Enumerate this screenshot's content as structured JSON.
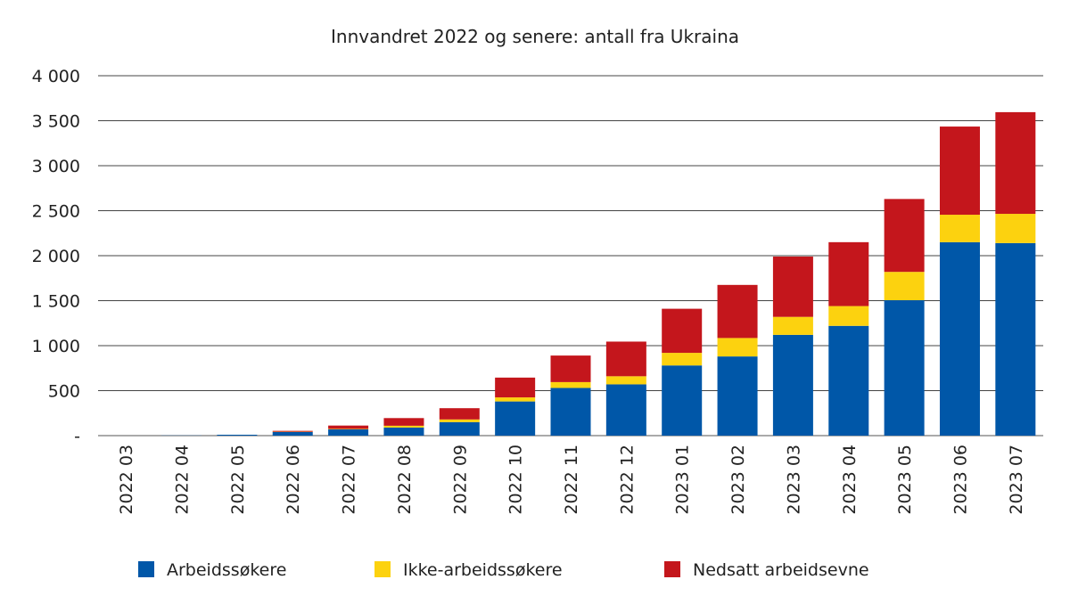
{
  "chart_data": {
    "type": "bar",
    "stacked": true,
    "title": "Innvandret 2022 og senere: antall fra Ukraina",
    "xlabel": "",
    "ylabel": "",
    "ylim": [
      0,
      4000
    ],
    "yticks": [
      0,
      500,
      1000,
      1500,
      2000,
      2500,
      3000,
      3500,
      4000
    ],
    "ytick_labels": [
      "-",
      "500",
      "1 000",
      "1 500",
      "2 000",
      "2 500",
      "3 000",
      "3 500",
      "4 000"
    ],
    "grid": true,
    "legend_position": "bottom",
    "categories": [
      "2022 03",
      "2022 04",
      "2022 05",
      "2022 06",
      "2022 07",
      "2022 08",
      "2022 09",
      "2022 10",
      "2022 11",
      "2022 12",
      "2023 01",
      "2023 02",
      "2023 03",
      "2023 04",
      "2023 05",
      "2023 06",
      "2023 07"
    ],
    "series": [
      {
        "name": "Arbeidssøkere",
        "color": "#0057a8",
        "values": [
          0,
          2,
          10,
          40,
          70,
          90,
          150,
          380,
          530,
          570,
          780,
          880,
          1120,
          1220,
          1505,
          2150,
          2140
        ]
      },
      {
        "name": "Ikke-arbeidssøkere",
        "color": "#fcd20f",
        "values": [
          0,
          0,
          0,
          3,
          5,
          20,
          30,
          45,
          65,
          90,
          140,
          205,
          200,
          220,
          315,
          305,
          325
        ]
      },
      {
        "name": "Nedsatt arbeidsevne",
        "color": "#c4161c",
        "values": [
          0,
          0,
          0,
          10,
          37,
          85,
          125,
          220,
          295,
          385,
          490,
          590,
          670,
          710,
          810,
          980,
          1130
        ]
      }
    ]
  }
}
